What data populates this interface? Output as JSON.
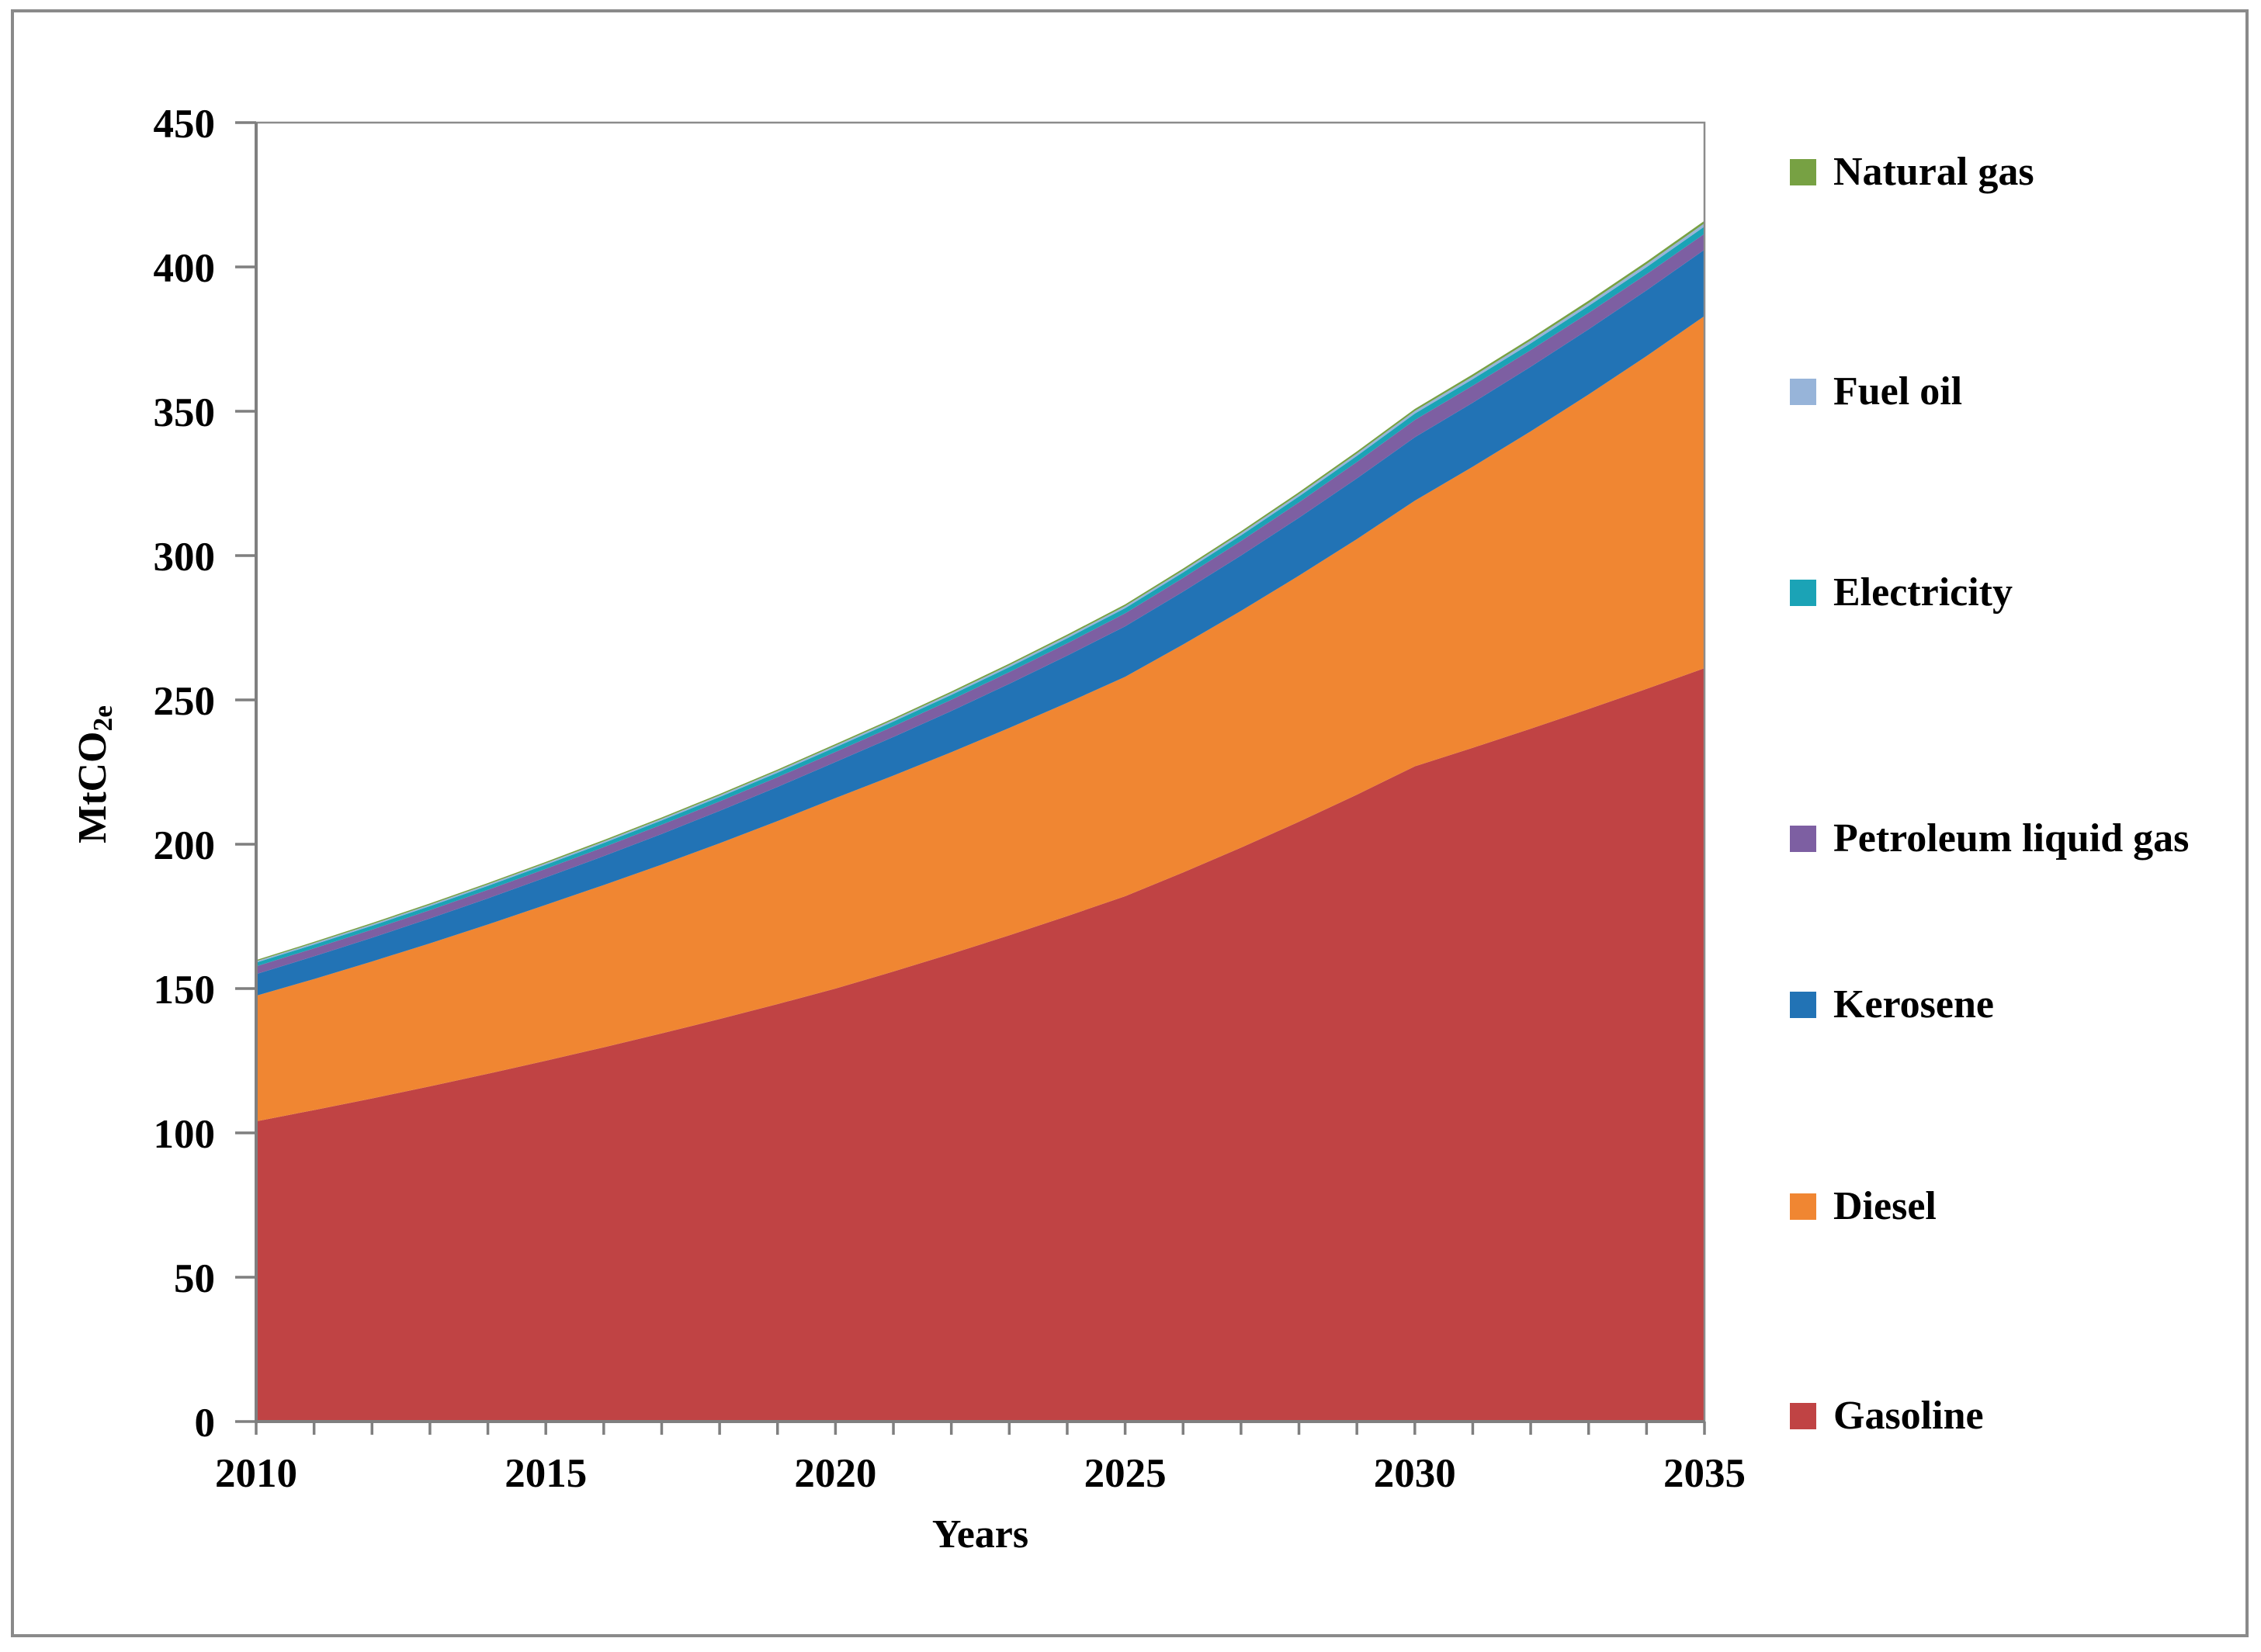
{
  "figure": {
    "description": "Stacked area chart of transport fuel emissions projection",
    "x_axis_title": "Years",
    "y_axis_title_main": "MtCO",
    "y_axis_title_sub": "2e"
  },
  "chart_data": {
    "type": "area",
    "stacked": true,
    "title": "",
    "xlabel": "Years",
    "ylabel": "MtCO2e",
    "ylabel_main": "MtCO",
    "ylabel_sub": "2e",
    "x": [
      2010,
      2015,
      2020,
      2025,
      2030,
      2035
    ],
    "x_minor_tick_every_years": 1,
    "xlim": [
      2010,
      2035
    ],
    "ylim": [
      0,
      450
    ],
    "ytick_step": 50,
    "grid": false,
    "legend_position": "right",
    "interpolation": "smooth yearly curve (geometric interpolation between 5-year anchor readings)",
    "series": [
      {
        "name": "Gasoline",
        "color": "#C04344",
        "values": [
          104,
          125,
          150,
          182,
          227,
          261
        ]
      },
      {
        "name": "Diesel",
        "color": "#F08632",
        "values": [
          43.5,
          54,
          66,
          76,
          92,
          122
        ]
      },
      {
        "name": "Kerosene",
        "color": "#2273B5",
        "values": [
          7.5,
          9.5,
          12.5,
          17.5,
          22,
          23
        ]
      },
      {
        "name": "Petroleum liquid gas",
        "color": "#7D5FA2",
        "values": [
          2.7,
          3,
          3.5,
          4.5,
          6,
          5.5
        ]
      },
      {
        "name": "Electricity",
        "color": "#1BA3B6",
        "values": [
          1.3,
          1.4,
          1.6,
          1.8,
          2.2,
          2.5
        ]
      },
      {
        "name": "Fuel oil",
        "color": "#97B4D9",
        "values": [
          0.5,
          0.55,
          0.6,
          0.7,
          0.9,
          1.1
        ]
      },
      {
        "name": "Natural gas",
        "color": "#77A143",
        "values": [
          0.4,
          0.45,
          0.5,
          0.6,
          0.7,
          0.9
        ]
      }
    ],
    "stack_totals": [
      159.9,
      193.9,
      234.7,
      283.1,
      350.8,
      416.0
    ],
    "legend": [
      {
        "label": "Natural gas",
        "color": "#77A143"
      },
      {
        "label": "Fuel oil",
        "color": "#97B4D9"
      },
      {
        "label": "Electricity",
        "color": "#1BA3B6"
      },
      {
        "label": "Petroleum liquid gas",
        "color": "#7D5FA2"
      },
      {
        "label": "Kerosene",
        "color": "#2273B5"
      },
      {
        "label": "Diesel",
        "color": "#F08632"
      },
      {
        "label": "Gasoline",
        "color": "#C04344"
      }
    ],
    "axis_color": "#7F7F7F",
    "plot_border_color": "#8C8C8C"
  }
}
